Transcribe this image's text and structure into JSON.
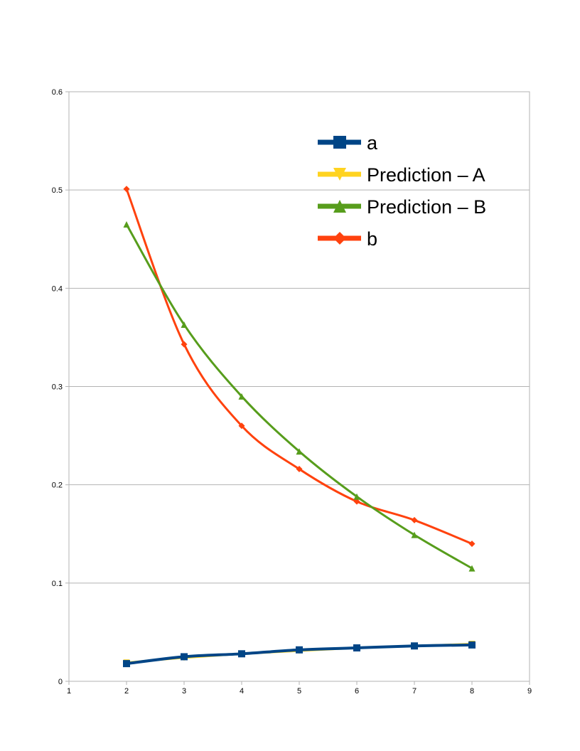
{
  "chart_data": {
    "type": "line",
    "title": "",
    "xlabel": "",
    "ylabel": "",
    "xlim": [
      1,
      9
    ],
    "ylim": [
      0,
      0.6
    ],
    "x_ticks": [
      "1",
      "2",
      "3",
      "4",
      "5",
      "6",
      "7",
      "8",
      "9"
    ],
    "y_ticks": [
      "0",
      "0.1",
      "0.2",
      "0.3",
      "0.4",
      "0.5",
      "0.6"
    ],
    "grid": "horizontal",
    "legend_position": "top-right",
    "smooth": true,
    "series": [
      {
        "name": "a",
        "color": "#004586",
        "marker": "square",
        "x": [
          2,
          3,
          4,
          5,
          6,
          7,
          8
        ],
        "values": [
          0.018,
          0.025,
          0.028,
          0.032,
          0.034,
          0.036,
          0.037
        ]
      },
      {
        "name": "Prediction – A",
        "color": "#ffd320",
        "marker": "triangle-down",
        "x": [
          2,
          3,
          4,
          5,
          6,
          7,
          8
        ],
        "values": [
          0.019,
          0.024,
          0.028,
          0.031,
          0.034,
          0.036,
          0.038
        ]
      },
      {
        "name": "Prediction – B",
        "color": "#579d1c",
        "marker": "triangle-up",
        "x": [
          2,
          3,
          4,
          5,
          6,
          7,
          8
        ],
        "values": [
          0.465,
          0.363,
          0.29,
          0.234,
          0.188,
          0.149,
          0.115
        ]
      },
      {
        "name": "b",
        "color": "#ff420e",
        "marker": "diamond",
        "x": [
          2,
          3,
          4,
          5,
          6,
          7,
          8
        ],
        "values": [
          0.501,
          0.343,
          0.26,
          0.216,
          0.183,
          0.164,
          0.14
        ]
      }
    ]
  }
}
